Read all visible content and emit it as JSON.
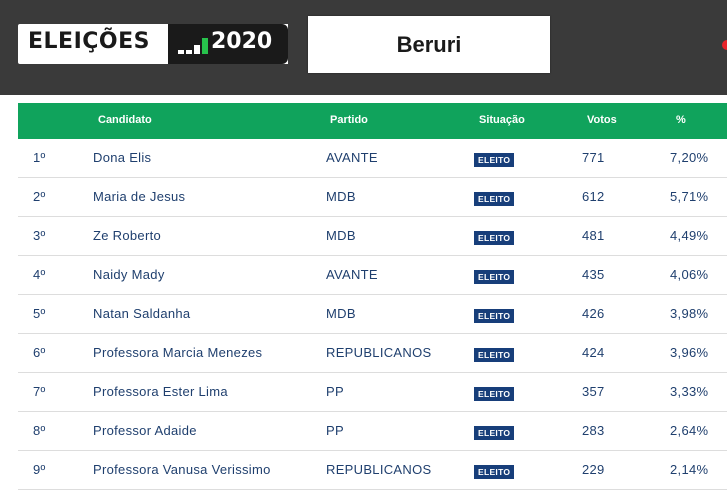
{
  "header": {
    "title": "ELEIÇÕES",
    "year": "2020",
    "city": "Beruri"
  },
  "colors": {
    "header_bg": "#3a3a3a",
    "table_header_bg": "#10a35c",
    "status_bg": "#173e7a",
    "text": "#1f3f6e"
  },
  "table": {
    "columns": [
      "Candidato",
      "Partido",
      "Situação",
      "Votos",
      "%"
    ],
    "rows": [
      {
        "rank": "1º",
        "name": "Dona Elis",
        "party": "AVANTE",
        "status": "ELEITO",
        "votes": "771",
        "pct": "7,20%"
      },
      {
        "rank": "2º",
        "name": "Maria de Jesus",
        "party": "MDB",
        "status": "ELEITO",
        "votes": "612",
        "pct": "5,71%"
      },
      {
        "rank": "3º",
        "name": "Ze Roberto",
        "party": "MDB",
        "status": "ELEITO",
        "votes": "481",
        "pct": "4,49%"
      },
      {
        "rank": "4º",
        "name": "Naidy Mady",
        "party": "AVANTE",
        "status": "ELEITO",
        "votes": "435",
        "pct": "4,06%"
      },
      {
        "rank": "5º",
        "name": "Natan Saldanha",
        "party": "MDB",
        "status": "ELEITO",
        "votes": "426",
        "pct": "3,98%"
      },
      {
        "rank": "6º",
        "name": "Professora Marcia Menezes",
        "party": "REPUBLICANOS",
        "status": "ELEITO",
        "votes": "424",
        "pct": "3,96%"
      },
      {
        "rank": "7º",
        "name": "Professora Ester Lima",
        "party": "PP",
        "status": "ELEITO",
        "votes": "357",
        "pct": "3,33%"
      },
      {
        "rank": "8º",
        "name": "Professor Adaide",
        "party": "PP",
        "status": "ELEITO",
        "votes": "283",
        "pct": "2,64%"
      },
      {
        "rank": "9º",
        "name": "Professora Vanusa Verissimo",
        "party": "REPUBLICANOS",
        "status": "ELEITO",
        "votes": "229",
        "pct": "2,14%"
      }
    ]
  }
}
